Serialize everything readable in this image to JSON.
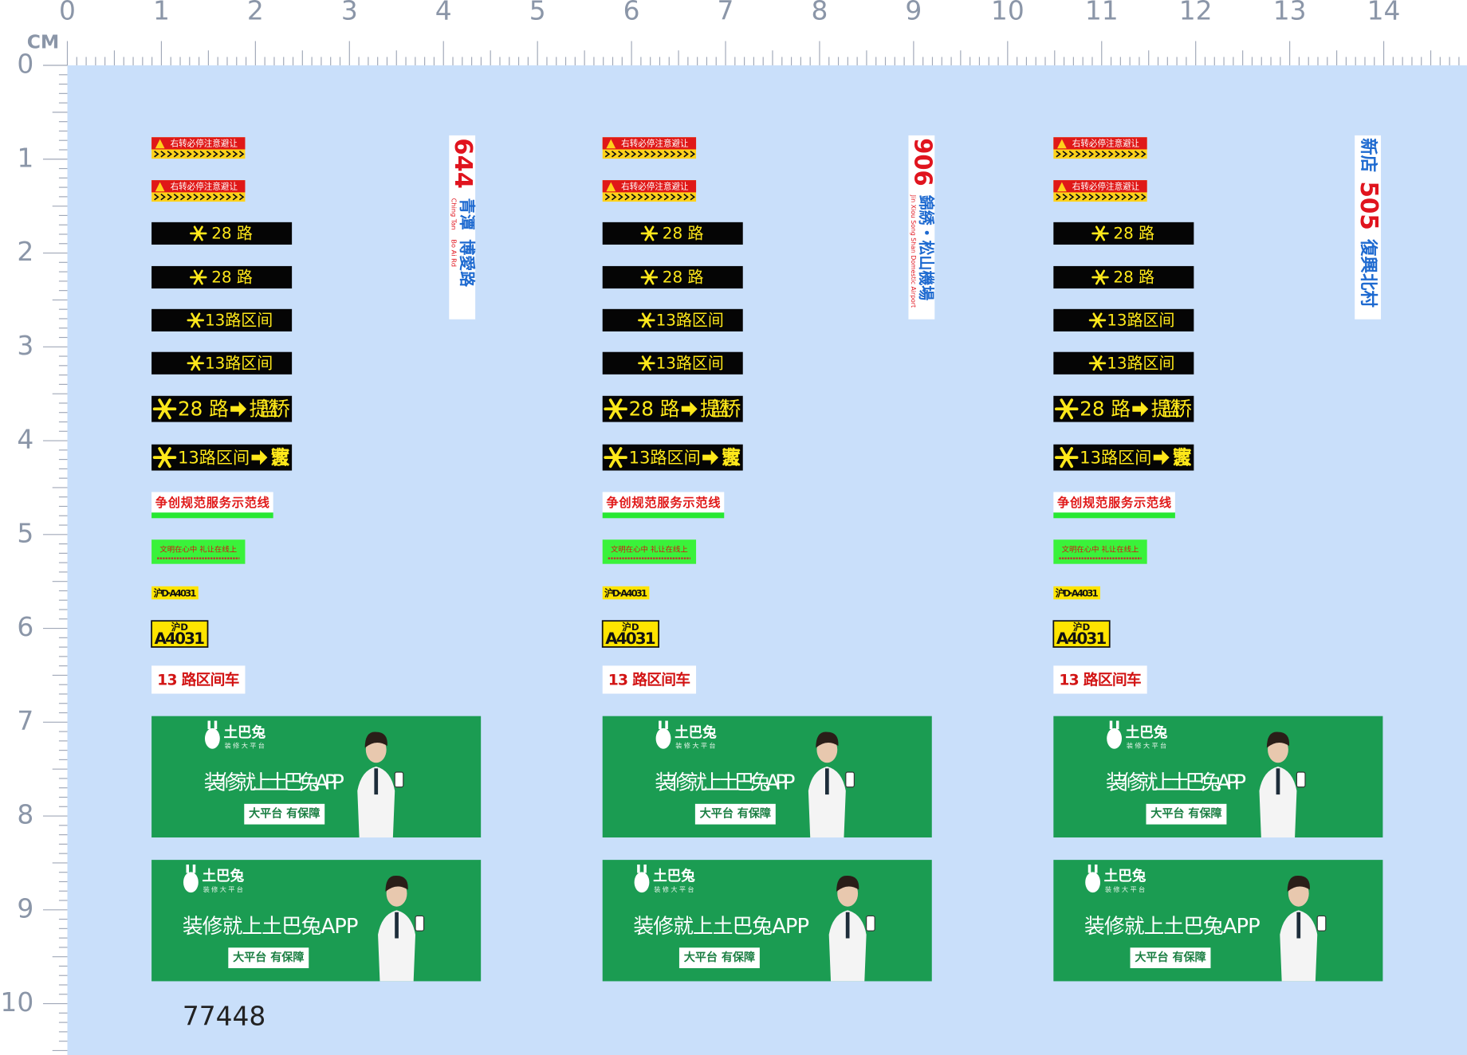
{
  "ruler": {
    "unit": "CM",
    "x_labels": [
      0,
      1,
      2,
      3,
      4,
      5,
      6,
      7,
      8,
      9,
      10,
      11,
      12,
      13,
      14
    ],
    "y_labels": [
      0,
      1,
      2,
      3,
      4,
      5,
      6,
      7,
      8,
      9,
      10
    ]
  },
  "columns": [
    {
      "warning": [
        "右转必停注意避让",
        "右转必停注意避让"
      ],
      "route_small": [
        "28 路",
        "28 路"
      ],
      "interval_small": [
        "13路区间",
        "13路区间"
      ],
      "route_arrow": {
        "route": "28 路",
        "dest": "提篮桥"
      },
      "interval_arrow": {
        "route": "13路区间",
        "dest": "曹家渡"
      },
      "model_line": "争创规范服务示范线",
      "civility": "文明在心中 礼让在线上",
      "plate_small": "沪D·A4031",
      "plate": {
        "top": "沪D",
        "bottom": "A4031"
      },
      "interval_bus": "13 路区间车",
      "banners": [
        {
          "brand": "土巴兔",
          "tagline": "装修大平台",
          "slogan": "装修就上土巴兔APP",
          "badge": "大平台 有保障"
        },
        {
          "brand": "土巴兔",
          "tagline": "装修大平台",
          "slogan": "装修就上土巴兔APP",
          "badge": "大平台 有保障"
        }
      ],
      "vertical": [
        {
          "text": "644",
          "color": "#e0141e"
        },
        {
          "text": "青潭",
          "color": "#1e6ad0",
          "sub": "Ching Tan"
        },
        {
          "text": "博愛路",
          "color": "#1e6ad0",
          "sub": "Bo Ai Rd"
        }
      ]
    },
    {
      "warning": [
        "右转必停注意避让",
        "右转必停注意避让"
      ],
      "route_small": [
        "28 路",
        "28 路"
      ],
      "interval_small": [
        "13路区间",
        "13路区间"
      ],
      "route_arrow": {
        "route": "28 路",
        "dest": "提篮桥"
      },
      "interval_arrow": {
        "route": "13路区间",
        "dest": "曹家渡"
      },
      "model_line": "争创规范服务示范线",
      "civility": "文明在心中 礼让在线上",
      "plate_small": "沪D·A4031",
      "plate": {
        "top": "沪D",
        "bottom": "A4031"
      },
      "interval_bus": "13 路区间车",
      "banners": [
        {
          "brand": "土巴兔",
          "tagline": "装修大平台",
          "slogan": "装修就上土巴兔APP",
          "badge": "大平台 有保障"
        },
        {
          "brand": "土巴兔",
          "tagline": "装修大平台",
          "slogan": "装修就上土巴兔APP",
          "badge": "大平台 有保障"
        }
      ],
      "vertical": [
        {
          "text": "906",
          "color": "#e0141e"
        },
        {
          "text": "錦綉・松山機場",
          "color": "#1e6ad0",
          "sub": "Jin Xiou Song Shan Domestic Airport"
        }
      ]
    },
    {
      "warning": [
        "右转必停注意避让",
        "右转必停注意避让"
      ],
      "route_small": [
        "28 路",
        "28 路"
      ],
      "interval_small": [
        "13路区间",
        "13路区间"
      ],
      "route_arrow": {
        "route": "28 路",
        "dest": "提篮桥"
      },
      "interval_arrow": {
        "route": "13路区间",
        "dest": "曹家渡"
      },
      "model_line": "争创规范服务示范线",
      "civility": "文明在心中 礼让在线上",
      "plate_small": "沪D·A4031",
      "plate": {
        "top": "沪D",
        "bottom": "A4031"
      },
      "interval_bus": "13 路区间车",
      "banners": [
        {
          "brand": "土巴兔",
          "tagline": "装修大平台",
          "slogan": "装修就上土巴兔APP",
          "badge": "大平台 有保障"
        },
        {
          "brand": "土巴兔",
          "tagline": "装修大平台",
          "slogan": "装修就上土巴兔APP",
          "badge": "大平台 有保障"
        }
      ],
      "vertical": [
        {
          "text": "新店",
          "color": "#1e6ad0"
        },
        {
          "text": "505",
          "color": "#e0141e"
        },
        {
          "text": "復興北村",
          "color": "#1e6ad0"
        }
      ]
    }
  ],
  "sheet_number": "77448"
}
